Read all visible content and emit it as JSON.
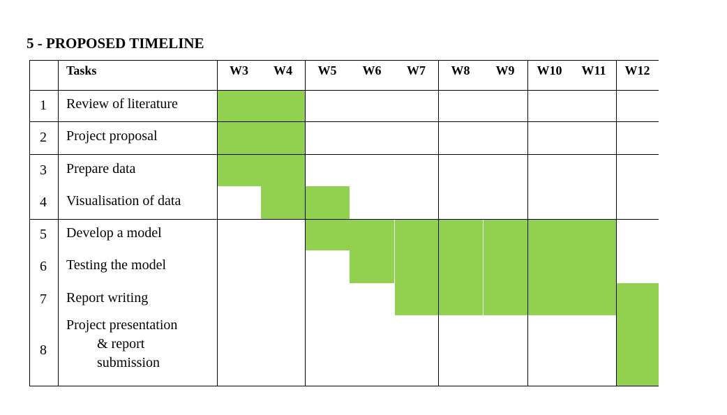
{
  "section_title": "5 - PROPOSED TIMELINE",
  "table": {
    "tasks_header": "Tasks",
    "weeks": [
      "W3",
      "W4",
      "W5",
      "W6",
      "W7",
      "W8",
      "W9",
      "W10",
      "W11",
      "W12"
    ],
    "rows": [
      {
        "num": "1",
        "task": [
          "Review of literature"
        ]
      },
      {
        "num": "2",
        "task": [
          "Project proposal"
        ]
      },
      {
        "num": "3",
        "task": [
          "Prepare data"
        ]
      },
      {
        "num": "4",
        "task": [
          "Visualisation of data"
        ]
      },
      {
        "num": "5",
        "task": [
          "Develop a model"
        ]
      },
      {
        "num": "6",
        "task": [
          "Testing the model"
        ]
      },
      {
        "num": "7",
        "task": [
          "Report writing"
        ]
      },
      {
        "num": "8",
        "task": [
          "Project presentation",
          "& report",
          "submission"
        ]
      }
    ]
  },
  "schedule": [
    {
      "task": "1",
      "start_week": "W3",
      "end_week": "W4"
    },
    {
      "task": "2",
      "start_week": "W3",
      "end_week": "W4"
    },
    {
      "task": "3",
      "start_week": "W3",
      "end_week": "W4"
    },
    {
      "task": "4",
      "start_week": "W4",
      "end_week": "W5"
    },
    {
      "task": "5",
      "start_week": "W5",
      "end_week": "W11"
    },
    {
      "task": "6",
      "start_week": "W6",
      "end_week": "W11"
    },
    {
      "task": "7",
      "start_week": "W7",
      "end_week": "W12"
    },
    {
      "task": "8",
      "start_week": "W12",
      "end_week": "W12"
    }
  ],
  "colors": {
    "bar": "#92d050",
    "grid": "#000000",
    "background": "#ffffff"
  }
}
